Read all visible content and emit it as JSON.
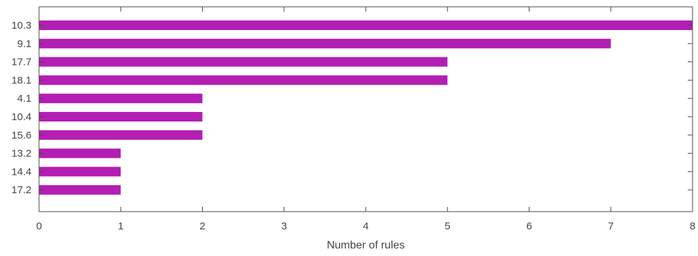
{
  "chart_data": {
    "type": "bar",
    "orientation": "horizontal",
    "categories": [
      "10.3",
      "9.1",
      "17.7",
      "18.1",
      "4.1",
      "10.4",
      "15.6",
      "13.2",
      "14.4",
      "17.2"
    ],
    "values": [
      8,
      7,
      5,
      5,
      2,
      2,
      2,
      1,
      1,
      1
    ],
    "xlabel": "Number of rules",
    "ylabel": "",
    "xlim": [
      0,
      8
    ],
    "xticks": [
      "0",
      "1",
      "2",
      "3",
      "4",
      "5",
      "6",
      "7",
      "8"
    ],
    "grid": false,
    "legend": "none",
    "bar_color": "#b21fb2"
  }
}
